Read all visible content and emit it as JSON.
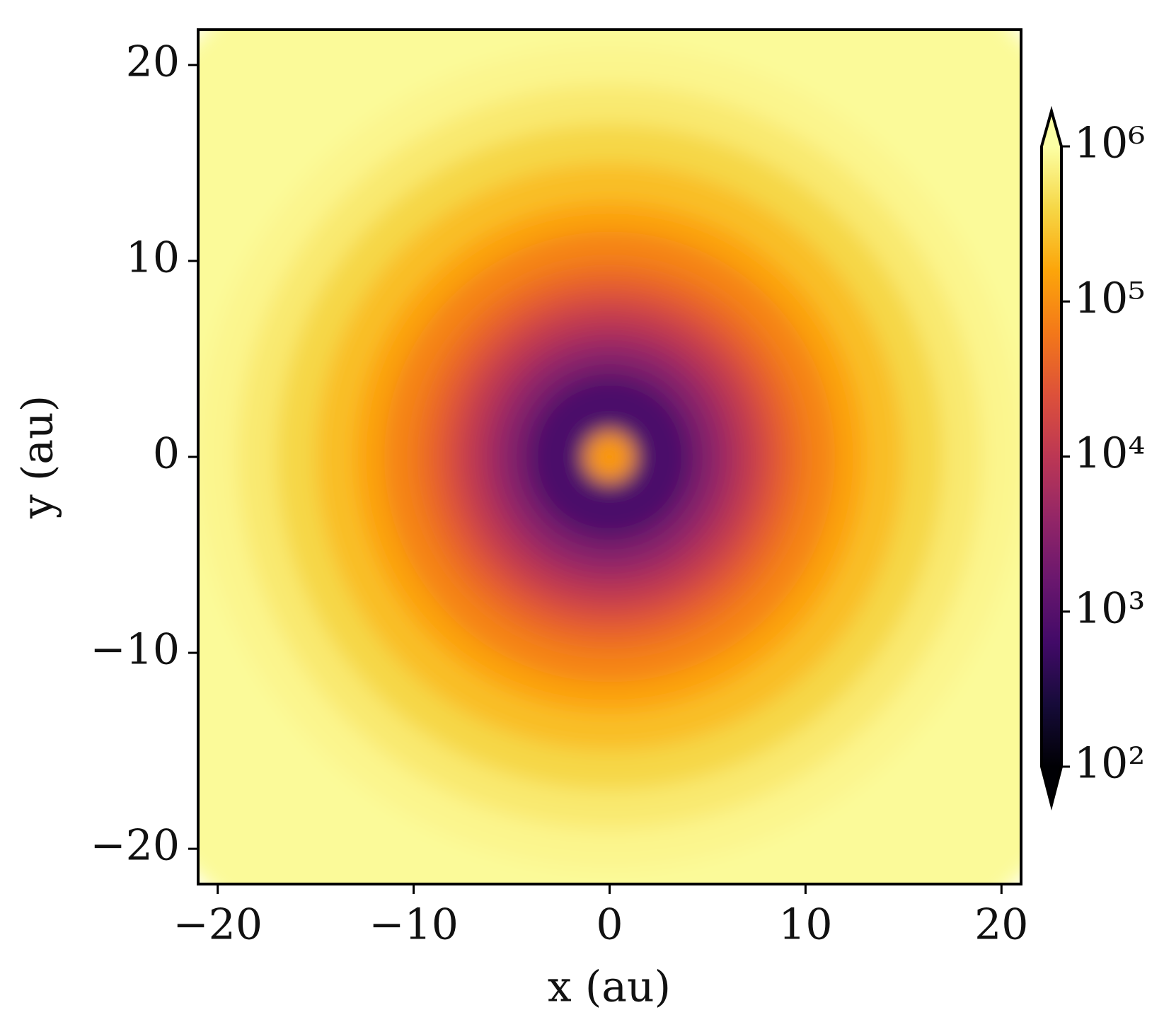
{
  "chart_data": {
    "type": "radial_heatmap",
    "xlabel": "x (au)",
    "ylabel": "y (au)",
    "xlim": [
      -21,
      21
    ],
    "ylim": [
      -21.8,
      21.8
    ],
    "xticks": [
      {
        "value": -20,
        "label": "−20"
      },
      {
        "value": -10,
        "label": "−10"
      },
      0,
      10,
      20
    ],
    "yticks": [
      {
        "value": -20,
        "label": "−20"
      },
      {
        "value": -10,
        "label": "−10"
      },
      0,
      10,
      20
    ],
    "r": [
      30,
      21,
      19,
      17,
      15,
      13,
      11.5,
      10,
      9,
      8,
      7,
      6,
      5,
      4,
      1.3
    ],
    "values": [
      900000,
      800000,
      600000,
      400000,
      250000,
      150000,
      80000,
      50000,
      30000,
      15000,
      8000,
      4000,
      2000,
      800,
      120000
    ],
    "colormap": "inferno",
    "color_scale": "log",
    "colorbar_extend": "both",
    "clim": [
      100,
      1000000
    ],
    "cticks": [
      {
        "value": 100,
        "label": "10²"
      },
      {
        "value": 1000,
        "label": "10³"
      },
      {
        "value": 10000,
        "label": "10⁴"
      },
      {
        "value": 100000,
        "label": "10⁵"
      },
      {
        "value": 1000000,
        "label": "10⁶"
      }
    ]
  }
}
